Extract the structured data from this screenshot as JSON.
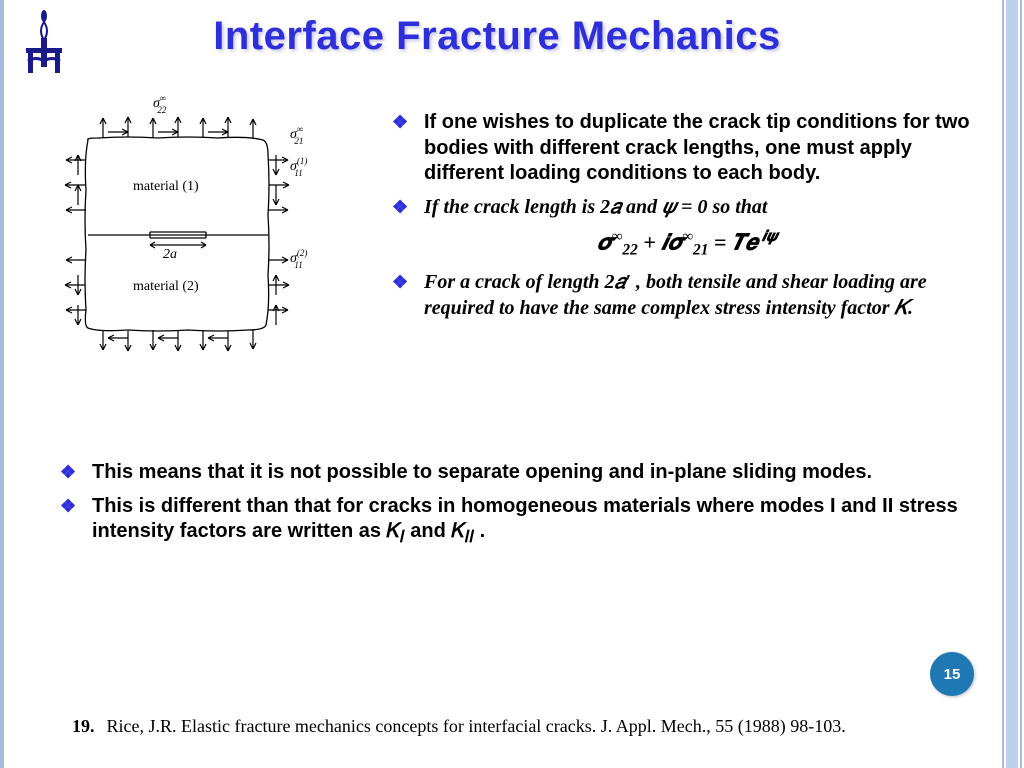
{
  "title": "Interface Fracture Mechanics",
  "page_number": "15",
  "colors": {
    "title_color": "#2e2edb",
    "bullet_marker": "#2e2edb",
    "badge_bg": "#1f77b4",
    "border_accent": "#a8bce0",
    "text": "#000000"
  },
  "bullets_right": [
    "If one wishes to duplicate the crack tip conditions for two bodies with different crack lengths, one must apply different loading conditions to each body.",
    "If the crack length is 2𝑎 and 𝜓 = 0  so that",
    "For a crack of length 2𝑎′ , both tensile and shear loading are required to have the same complex stress intensity factor 𝐾."
  ],
  "equation_html": "𝝈<span class='sup'>∞</span><span class='sub'>22</span> + 𝒊𝝈<span class='sup'>∞</span><span class='sub'>21</span> = 𝑻𝒆<span class='sup'>&nbsp;𝒊𝝍</span>",
  "bullets_bottom": [
    "This means that it is not possible to separate opening and in-plane sliding modes.",
    "This is different than that for cracks in homogeneous materials where modes I and II stress intensity factors are written as 𝐾<sub>𝐼</sub> and 𝐾<sub>𝐼𝐼</sub> ."
  ],
  "reference": {
    "num": "19.",
    "text": "Rice, J.R.  Elastic fracture mechanics concepts for interfacial cracks.  J. Appl. Mech., 55 (1988)  98-103."
  },
  "diagram": {
    "labels": {
      "mat1": "material (1)",
      "mat2": "material (2)",
      "crack": "2a",
      "sigma22": "σ",
      "sigma22_subsup": [
        "22",
        "∞"
      ],
      "sigma21": "σ",
      "sigma21_subsup": [
        "21",
        "∞"
      ],
      "sigma11_1": "σ",
      "sigma11_1_subsup": [
        "11",
        "(1)"
      ],
      "sigma11_2": "σ",
      "sigma11_2_subsup": [
        "11",
        "(2)"
      ]
    },
    "style": {
      "stroke": "#000000",
      "stroke_width": 1.3,
      "font": "serif",
      "font_size_label": 14,
      "font_size_symbol": 14
    }
  }
}
